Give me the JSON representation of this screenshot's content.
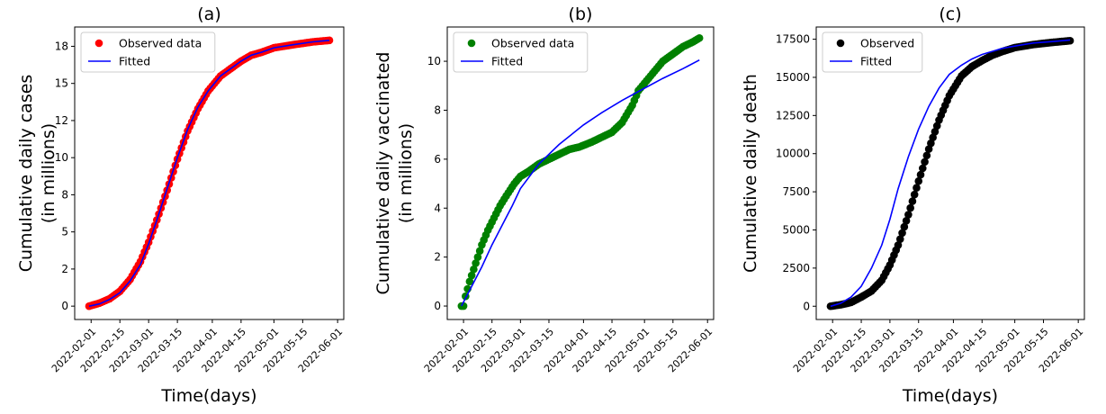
{
  "chart_data": [
    {
      "type": "line",
      "title": "(a)",
      "xlabel": "Time(days)",
      "ylabel": [
        "Cumulative daily cases",
        "(in millions)"
      ],
      "x_ticks": [
        "2022-02-01",
        "2022-02-15",
        "2022-03-01",
        "2022-03-15",
        "2022-04-01",
        "2022-04-15",
        "2022-05-01",
        "2022-05-15",
        "2022-06-01"
      ],
      "y_ticks": [
        "0",
        "2",
        "5",
        "8",
        "10",
        "12",
        "15",
        "18"
      ],
      "y_tick_values": [
        0,
        2.5,
        5,
        7.5,
        10,
        12.5,
        15,
        17.5
      ],
      "ylim": [
        -0.9,
        18.8
      ],
      "legend_position": "upper-left",
      "series": [
        {
          "name": "Observed data",
          "kind": "scatter",
          "color": "#ff0000",
          "x": [
            "2022-01-31",
            "2022-02-05",
            "2022-02-10",
            "2022-02-15",
            "2022-02-20",
            "2022-02-25",
            "2022-03-01",
            "2022-03-05",
            "2022-03-10",
            "2022-03-15",
            "2022-03-20",
            "2022-03-25",
            "2022-03-30",
            "2022-04-05",
            "2022-04-10",
            "2022-04-15",
            "2022-04-20",
            "2022-04-25",
            "2022-05-01",
            "2022-05-10",
            "2022-05-20",
            "2022-05-28"
          ],
          "y": [
            0,
            0.2,
            0.5,
            1.0,
            1.8,
            3.0,
            4.3,
            5.8,
            7.8,
            9.9,
            11.8,
            13.3,
            14.5,
            15.5,
            16.0,
            16.5,
            16.9,
            17.1,
            17.4,
            17.6,
            17.8,
            17.9
          ]
        },
        {
          "name": "Fitted",
          "kind": "line",
          "color": "#0000ff",
          "x": [
            "2022-01-31",
            "2022-02-05",
            "2022-02-10",
            "2022-02-15",
            "2022-02-20",
            "2022-02-25",
            "2022-03-01",
            "2022-03-05",
            "2022-03-10",
            "2022-03-15",
            "2022-03-20",
            "2022-03-25",
            "2022-03-30",
            "2022-04-05",
            "2022-04-10",
            "2022-04-15",
            "2022-04-20",
            "2022-04-25",
            "2022-05-01",
            "2022-05-10",
            "2022-05-20",
            "2022-05-28"
          ],
          "y": [
            0,
            0.15,
            0.45,
            0.9,
            1.7,
            2.8,
            4.2,
            5.8,
            7.9,
            10.0,
            11.9,
            13.4,
            14.5,
            15.5,
            16.0,
            16.5,
            16.9,
            17.1,
            17.4,
            17.6,
            17.8,
            17.9
          ]
        }
      ]
    },
    {
      "type": "line",
      "title": "(b)",
      "xlabel": "",
      "ylabel": [
        "Cumulative daily vaccinated",
        "(in millions)"
      ],
      "x_ticks": [
        "2022-02-01",
        "2022-02-15",
        "2022-03-01",
        "2022-03-15",
        "2022-04-01",
        "2022-04-15",
        "2022-05-01",
        "2022-05-15",
        "2022-06-01"
      ],
      "y_ticks": [
        "0",
        "2",
        "4",
        "6",
        "8",
        "10"
      ],
      "y_tick_values": [
        0,
        2,
        4,
        6,
        8,
        10
      ],
      "ylim": [
        -0.55,
        11.4
      ],
      "legend_position": "upper-left",
      "series": [
        {
          "name": "Observed data",
          "kind": "scatter",
          "color": "#008000",
          "x": [
            "2022-01-31",
            "2022-02-01",
            "2022-02-02",
            "2022-02-04",
            "2022-02-06",
            "2022-02-08",
            "2022-02-10",
            "2022-02-13",
            "2022-02-16",
            "2022-02-19",
            "2022-02-22",
            "2022-02-26",
            "2022-03-01",
            "2022-03-05",
            "2022-03-10",
            "2022-03-15",
            "2022-03-20",
            "2022-03-25",
            "2022-03-30",
            "2022-04-05",
            "2022-04-10",
            "2022-04-15",
            "2022-04-20",
            "2022-04-25",
            "2022-04-28",
            "2022-05-01",
            "2022-05-05",
            "2022-05-10",
            "2022-05-15",
            "2022-05-20",
            "2022-05-25",
            "2022-05-28"
          ],
          "y": [
            0,
            0,
            0.4,
            1.0,
            1.5,
            2.0,
            2.5,
            3.1,
            3.6,
            4.1,
            4.5,
            5.0,
            5.3,
            5.5,
            5.8,
            6.0,
            6.2,
            6.4,
            6.5,
            6.7,
            6.9,
            7.1,
            7.5,
            8.2,
            8.8,
            9.1,
            9.5,
            10.0,
            10.3,
            10.6,
            10.8,
            10.95
          ]
        },
        {
          "name": "Fitted",
          "kind": "line",
          "color": "#0000ff",
          "x": [
            "2022-01-31",
            "2022-02-05",
            "2022-02-10",
            "2022-02-15",
            "2022-02-20",
            "2022-02-25",
            "2022-03-01",
            "2022-03-10",
            "2022-03-20",
            "2022-04-01",
            "2022-04-10",
            "2022-04-20",
            "2022-05-01",
            "2022-05-10",
            "2022-05-20",
            "2022-05-28"
          ],
          "y": [
            0,
            0.8,
            1.6,
            2.5,
            3.3,
            4.1,
            4.8,
            5.8,
            6.6,
            7.4,
            7.9,
            8.4,
            8.9,
            9.3,
            9.7,
            10.05
          ]
        }
      ]
    },
    {
      "type": "line",
      "title": "(c)",
      "xlabel": "Time(days)",
      "ylabel": [
        "Cumulative daily death"
      ],
      "x_ticks": [
        "2022-02-01",
        "2022-02-15",
        "2022-03-01",
        "2022-03-15",
        "2022-04-01",
        "2022-04-15",
        "2022-05-01",
        "2022-05-15",
        "2022-06-01"
      ],
      "y_ticks": [
        "0",
        "2500",
        "5000",
        "7500",
        "10000",
        "12500",
        "15000",
        "17500"
      ],
      "y_tick_values": [
        0,
        2500,
        5000,
        7500,
        10000,
        12500,
        15000,
        17500
      ],
      "ylim": [
        -870,
        18300
      ],
      "legend_position": "upper-left",
      "series": [
        {
          "name": "Observed",
          "kind": "scatter",
          "color": "#000000",
          "x": [
            "2022-01-31",
            "2022-02-05",
            "2022-02-10",
            "2022-02-15",
            "2022-02-20",
            "2022-02-25",
            "2022-03-01",
            "2022-03-05",
            "2022-03-10",
            "2022-03-15",
            "2022-03-20",
            "2022-03-25",
            "2022-03-30",
            "2022-04-05",
            "2022-04-10",
            "2022-04-15",
            "2022-04-20",
            "2022-04-25",
            "2022-05-01",
            "2022-05-10",
            "2022-05-20",
            "2022-05-28"
          ],
          "y": [
            0,
            100,
            250,
            600,
            1000,
            1700,
            2700,
            4000,
            6000,
            8200,
            10300,
            12200,
            13800,
            15100,
            15700,
            16100,
            16450,
            16700,
            16950,
            17150,
            17300,
            17400
          ]
        },
        {
          "name": "Fitted",
          "kind": "line",
          "color": "#0000ff",
          "x": [
            "2022-01-31",
            "2022-02-05",
            "2022-02-10",
            "2022-02-15",
            "2022-02-20",
            "2022-02-25",
            "2022-03-01",
            "2022-03-05",
            "2022-03-10",
            "2022-03-15",
            "2022-03-20",
            "2022-03-25",
            "2022-03-30",
            "2022-04-05",
            "2022-04-10",
            "2022-04-15",
            "2022-04-20",
            "2022-04-25",
            "2022-05-01",
            "2022-05-10",
            "2022-05-20",
            "2022-05-28"
          ],
          "y": [
            0,
            200,
            600,
            1300,
            2500,
            4000,
            5700,
            7700,
            9800,
            11600,
            13100,
            14300,
            15200,
            15800,
            16200,
            16500,
            16700,
            16900,
            17050,
            17250,
            17350,
            17450
          ]
        }
      ]
    }
  ]
}
